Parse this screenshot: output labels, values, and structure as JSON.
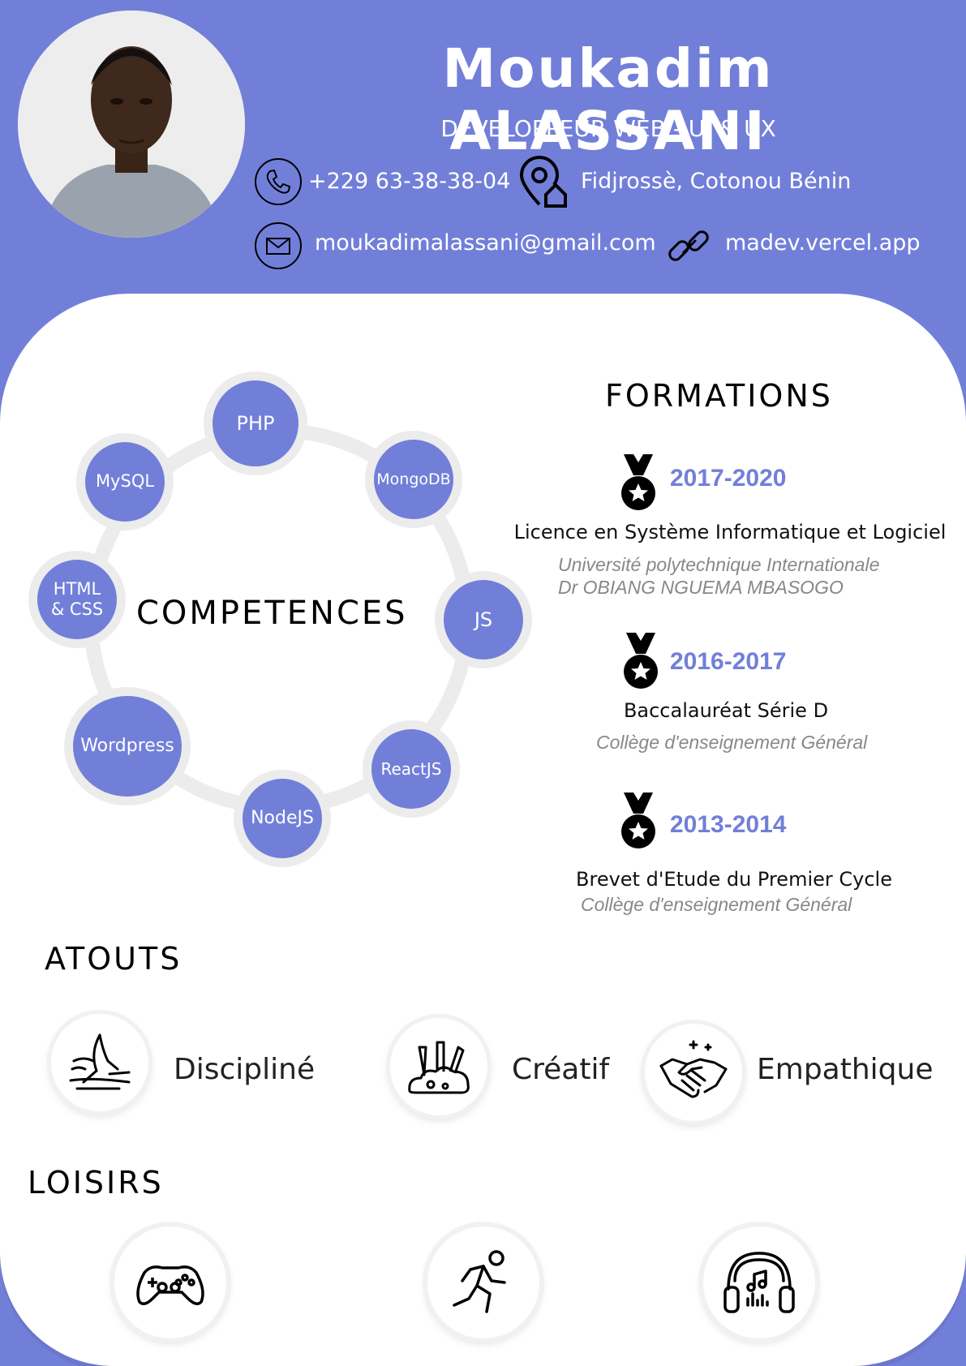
{
  "header": {
    "name": "Moukadim ALASSANI",
    "role": "DEVELOPPEUR WEB -  UI & UX",
    "phone": "+229 63-38-38-04",
    "location": "Fidjrossè, Cotonou Bénin",
    "email": "moukadimalassani@gmail.com",
    "website": "madev.vercel.app"
  },
  "competences": {
    "title": "COMPETENCES",
    "skills": [
      "PHP",
      "MongoDB",
      "JS",
      "ReactJS",
      "NodeJS",
      "Wordpress",
      "HTML & CSS",
      "MySQL"
    ]
  },
  "formations": {
    "title": "FORMATIONS",
    "items": [
      {
        "years": "2017-2020",
        "degree": "Licence en  Système Informatique et Logiciel",
        "school_line1": "Université polytechnique Internationale",
        "school_line2": "Dr OBIANG NGUEMA MBASOGO"
      },
      {
        "years": "2016-2017",
        "degree": "Baccalauréat Série D",
        "school_line1": "Collège d'enseignement Général"
      },
      {
        "years": "2013-2014",
        "degree": "Brevet d'Etude du Premier Cycle",
        "school_line1": "Collège d'enseignement Général"
      }
    ]
  },
  "atouts": {
    "title": "ATOUTS",
    "items": [
      {
        "label": "Discipliné",
        "icon": "discipline-icon"
      },
      {
        "label": "Créatif",
        "icon": "creative-tools-icon"
      },
      {
        "label": "Empathique",
        "icon": "handshake-icon"
      }
    ]
  },
  "loisirs": {
    "title": "LOISIRS",
    "items": [
      {
        "icon": "gamepad-icon"
      },
      {
        "icon": "running-icon"
      },
      {
        "icon": "headphones-icon"
      }
    ]
  },
  "colors": {
    "accent": "#727fd9",
    "background": "#ffffff",
    "ring": "#ececec"
  }
}
